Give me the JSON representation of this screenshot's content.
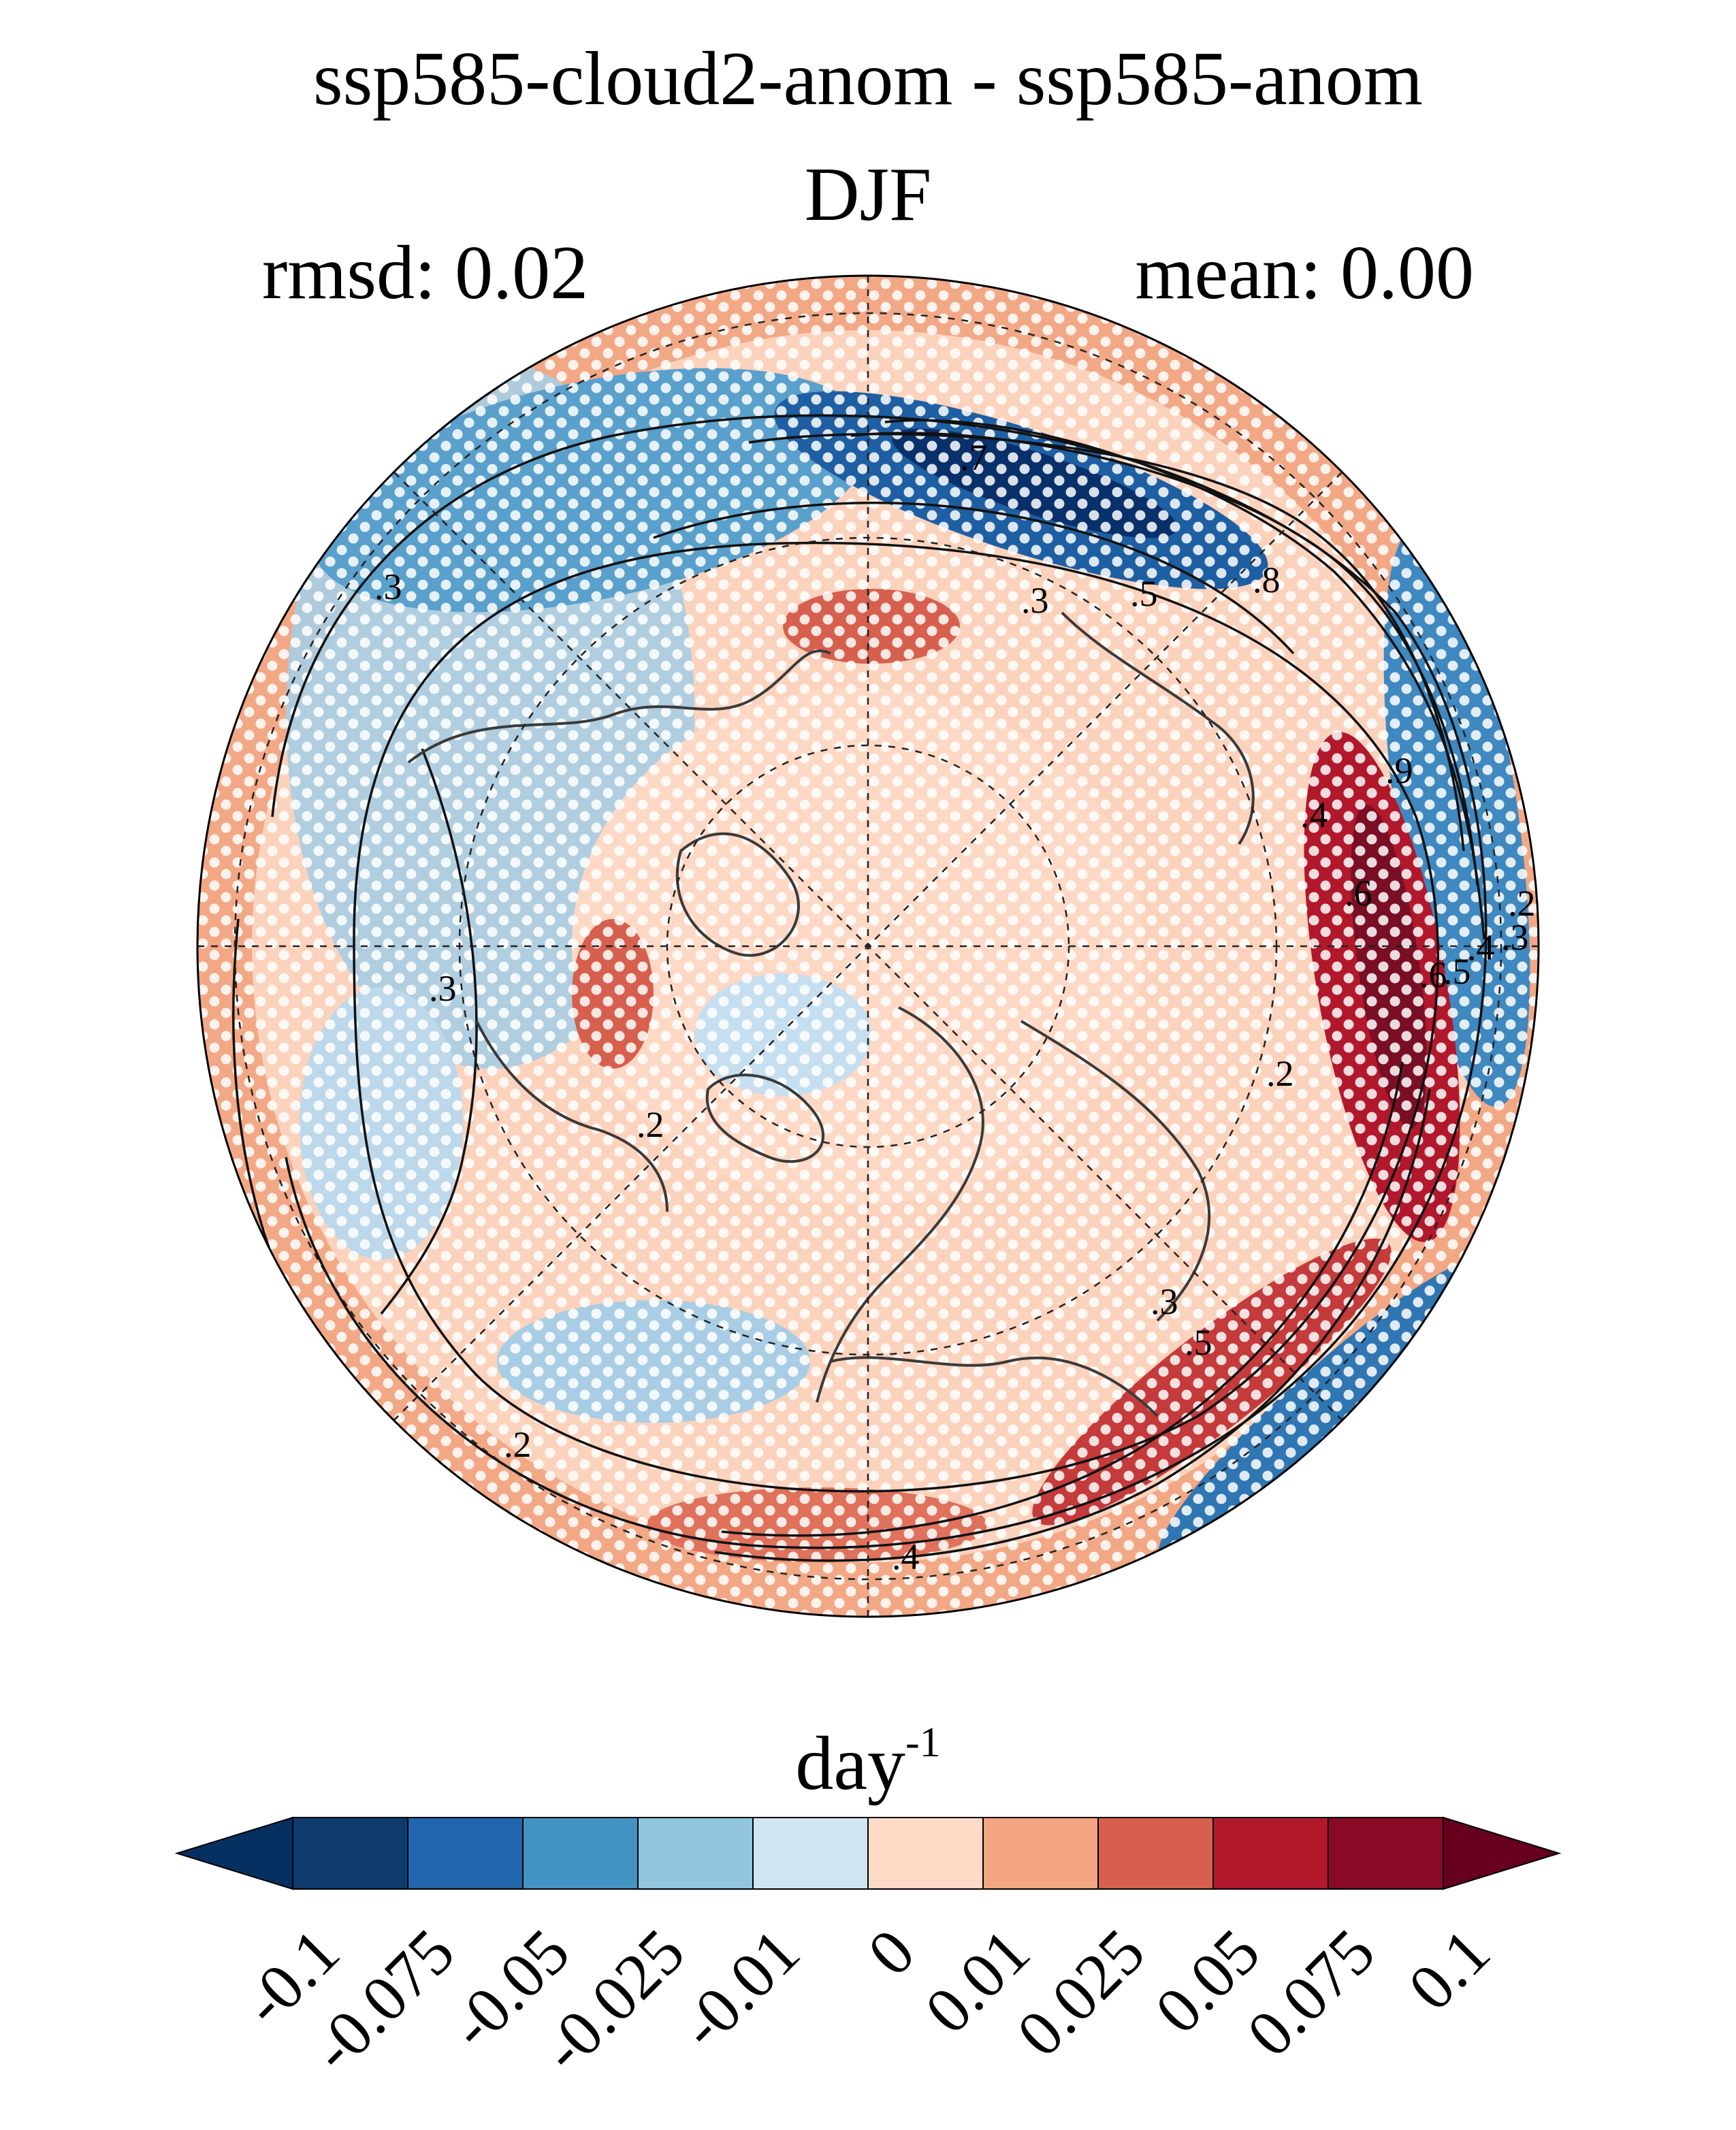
{
  "figure": {
    "title": "ssp585-cloud2-anom - ssp585-anom",
    "season": "DJF",
    "stats": {
      "rmsd": "rmsd: 0.02",
      "mean": "mean: 0.00"
    }
  },
  "map": {
    "projection": "north polar stereographic",
    "gridlines": "dashed",
    "stippling": "white dots",
    "contour_labels": [
      ".3",
      ".7",
      ".3",
      ".5",
      ".8",
      ".9",
      ".4",
      ".6",
      ".2",
      ".3",
      ".4",
      ".5",
      ".6",
      ".3",
      ".2",
      ".2",
      ".5",
      ".4",
      ".3",
      ".2"
    ]
  },
  "colorbar": {
    "units_base": "day",
    "units_exp": "-1",
    "tick_labels": [
      "-0.1",
      "-0.075",
      "-0.05",
      "-0.025",
      "-0.01",
      "0",
      "0.01",
      "0.025",
      "0.05",
      "0.075",
      "0.1"
    ],
    "colors": [
      "#053061",
      "#0e3b6e",
      "#2166ac",
      "#4393c3",
      "#92c5de",
      "#d1e5f0",
      "#fddbc7",
      "#f4a582",
      "#d6604d",
      "#b2182b",
      "#8a0a25",
      "#67001f"
    ]
  }
}
